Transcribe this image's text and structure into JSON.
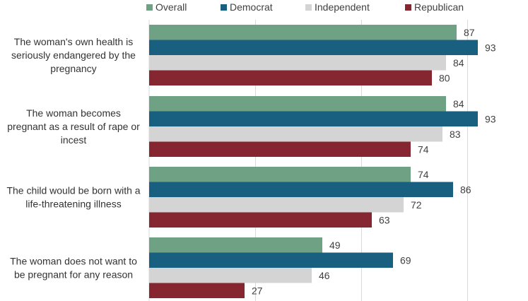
{
  "chart_data": {
    "type": "bar",
    "orientation": "horizontal",
    "categories": [
      "The woman's own health is seriously endangered by the pregnancy",
      "The woman becomes pregnant as a result of rape or incest",
      "The child would be born with a life-threatening illness",
      "The woman does not want to be pregnant for any reason"
    ],
    "category_lines": [
      [
        "The woman's own health is",
        "seriously endangered by the",
        "pregnancy"
      ],
      [
        "The woman becomes",
        "pregnant as a result of rape or",
        "incest"
      ],
      [
        "The child would be born with a",
        "life-threatening illness"
      ],
      [
        "The woman does not want to",
        "be pregnant for any reason"
      ]
    ],
    "series": [
      {
        "name": "Overall",
        "color": "#6fa284",
        "values": [
          87,
          84,
          74,
          49
        ]
      },
      {
        "name": "Democrat",
        "color": "#195f80",
        "values": [
          93,
          93,
          86,
          69
        ]
      },
      {
        "name": "Independent",
        "color": "#d4d4d4",
        "values": [
          84,
          83,
          72,
          46
        ]
      },
      {
        "name": "Republican",
        "color": "#862630",
        "values": [
          80,
          74,
          63,
          27
        ]
      }
    ],
    "xlim": [
      0,
      100
    ],
    "grid": true,
    "gridline_values": [
      30,
      60,
      90
    ],
    "legend_position": "top",
    "data_labels": true
  }
}
